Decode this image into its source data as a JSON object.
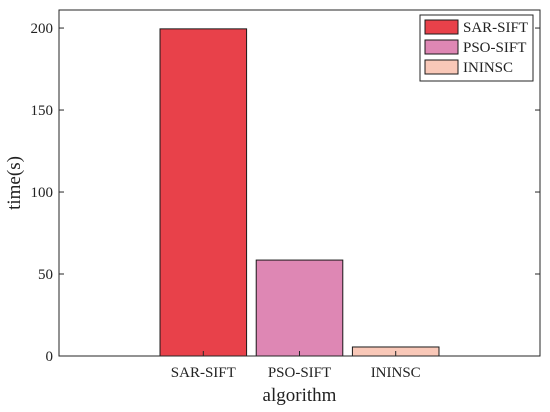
{
  "chart_data": {
    "type": "bar",
    "categories": [
      "SAR-SIFT",
      "PSO-SIFT",
      "ININSC"
    ],
    "values": [
      199.5,
      58.5,
      5.5
    ],
    "colors": [
      "#e8414a",
      "#de87b4",
      "#f9c8b8"
    ],
    "xlabel": "algorithm",
    "ylabel": "time(s)",
    "ylim": [
      0,
      211
    ],
    "yticks": [
      0,
      50,
      100,
      150,
      200
    ],
    "legend": {
      "placement": "top-right",
      "entries": [
        "SAR-SIFT",
        "PSO-SIFT",
        "ININSC"
      ]
    },
    "grid": false
  }
}
